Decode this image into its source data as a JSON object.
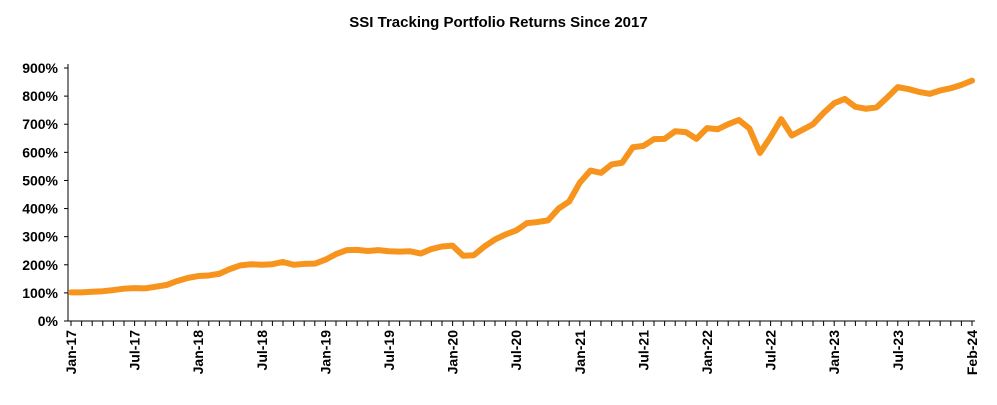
{
  "chart_data": {
    "type": "line",
    "title": "SSI Tracking Portfolio Returns Since 2017",
    "xlabel": "",
    "ylabel": "",
    "ylim": [
      0,
      900
    ],
    "yticks": [
      0,
      100,
      200,
      300,
      400,
      500,
      600,
      700,
      800,
      900
    ],
    "ytick_labels": [
      "0%",
      "100%",
      "200%",
      "300%",
      "400%",
      "500%",
      "600%",
      "700%",
      "800%",
      "900%"
    ],
    "xtick_labels": [
      "Jan-17",
      "Jul-17",
      "Jan-18",
      "Jul-18",
      "Jan-19",
      "Jul-19",
      "Jan-20",
      "Jul-20",
      "Jan-21",
      "Jul-21",
      "Jan-22",
      "Jul-22",
      "Jan-23",
      "Jul-23",
      "Feb-24"
    ],
    "xtick_months": [
      "2017-01",
      "2017-07",
      "2018-01",
      "2018-07",
      "2019-01",
      "2019-07",
      "2020-01",
      "2020-07",
      "2021-01",
      "2021-07",
      "2022-01",
      "2022-07",
      "2023-01",
      "2023-07",
      "2024-02"
    ],
    "grid": false,
    "legend": "none",
    "color": "#F7941D",
    "series": [
      {
        "x": [
          "2017-01",
          "2017-02",
          "2017-03",
          "2017-04",
          "2017-05",
          "2017-06",
          "2017-07",
          "2017-08",
          "2017-09",
          "2017-10",
          "2017-11",
          "2017-12",
          "2018-01",
          "2018-02",
          "2018-03",
          "2018-04",
          "2018-05",
          "2018-06",
          "2018-07",
          "2018-08",
          "2018-09",
          "2018-10",
          "2018-11",
          "2018-12",
          "2019-01",
          "2019-02",
          "2019-03",
          "2019-04",
          "2019-05",
          "2019-06",
          "2019-07",
          "2019-08",
          "2019-09",
          "2019-10",
          "2019-11",
          "2019-12",
          "2020-01",
          "2020-02",
          "2020-03",
          "2020-04",
          "2020-05",
          "2020-06",
          "2020-07",
          "2020-08",
          "2020-09",
          "2020-10",
          "2020-11",
          "2020-12",
          "2021-01",
          "2021-02",
          "2021-03",
          "2021-04",
          "2021-05",
          "2021-06",
          "2021-07",
          "2021-08",
          "2021-09",
          "2021-10",
          "2021-11",
          "2021-12",
          "2022-01",
          "2022-02",
          "2022-03",
          "2022-04",
          "2022-05",
          "2022-06",
          "2022-07",
          "2022-08",
          "2022-09",
          "2022-10",
          "2022-11",
          "2022-12",
          "2023-01",
          "2023-02",
          "2023-03",
          "2023-04",
          "2023-05",
          "2023-06",
          "2023-07",
          "2023-08",
          "2023-09",
          "2023-10",
          "2023-11",
          "2023-12",
          "2024-01",
          "2024-02"
        ],
        "values": [
          102,
          102,
          104,
          106,
          110,
          115,
          117,
          116,
          122,
          128,
          142,
          153,
          160,
          162,
          168,
          185,
          198,
          202,
          200,
          202,
          210,
          200,
          203,
          204,
          218,
          238,
          252,
          253,
          249,
          252,
          248,
          247,
          248,
          240,
          256,
          265,
          268,
          232,
          234,
          265,
          290,
          308,
          322,
          348,
          352,
          358,
          400,
          425,
          492,
          535,
          527,
          557,
          563,
          618,
          623,
          647,
          648,
          675,
          672,
          648,
          686,
          682,
          700,
          715,
          685,
          598,
          655,
          718,
          660,
          680,
          700,
          740,
          775,
          790,
          762,
          755,
          760,
          795,
          832,
          825,
          815,
          808,
          820,
          828,
          840,
          855
        ]
      }
    ]
  }
}
